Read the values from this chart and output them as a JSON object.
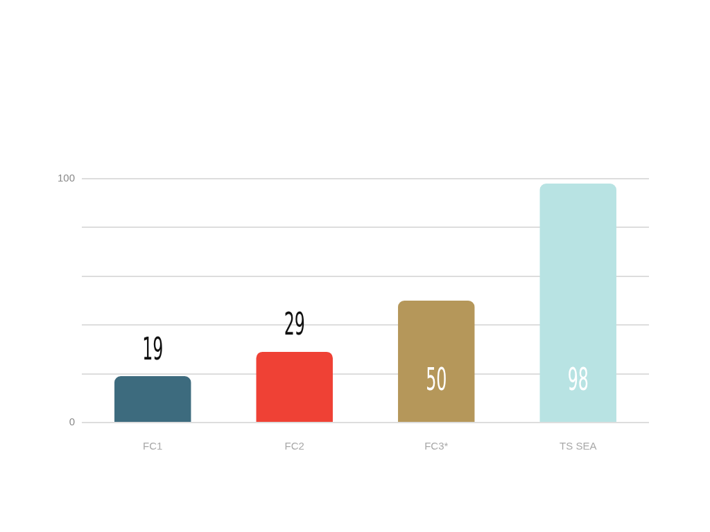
{
  "chart_data": {
    "type": "bar",
    "categories": [
      "FC1",
      "FC2",
      "FC3*",
      "TS SEA"
    ],
    "values": [
      19,
      29,
      50,
      98
    ],
    "colors": [
      "#3d6b7e",
      "#ef4135",
      "#b5975a",
      "#b8e3e3"
    ],
    "ylim": [
      0,
      100
    ],
    "yticks": [
      0,
      {
        "value": 20,
        "label": null
      },
      {
        "value": 40,
        "label": null
      },
      {
        "value": 60,
        "label": null
      },
      {
        "value": 80,
        "label": null
      },
      100
    ],
    "grid": "y",
    "data_labels": true,
    "legend": false
  }
}
